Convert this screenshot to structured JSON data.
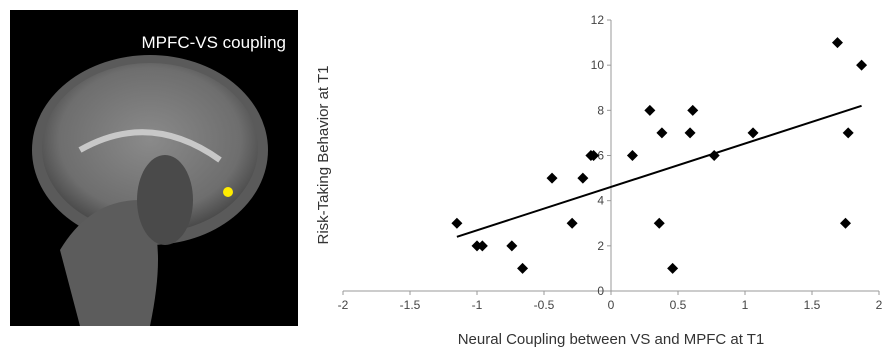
{
  "image": {
    "label": "MPFC-VS coupling"
  },
  "chart_data": {
    "type": "scatter",
    "x_label": "Neural Coupling between VS and MPFC at T1",
    "y_label": "Risk-Taking Behavior at T1",
    "x": [
      -1.15,
      -1.0,
      -0.96,
      -0.74,
      -0.66,
      -0.44,
      -0.29,
      -0.21,
      -0.15,
      -0.13,
      0.16,
      0.29,
      0.36,
      0.38,
      0.46,
      0.59,
      0.61,
      0.77,
      1.06,
      1.69,
      1.75,
      1.77,
      1.87
    ],
    "values": [
      3,
      2,
      2,
      2,
      1,
      5,
      3,
      5,
      6,
      6,
      6,
      8,
      3,
      7,
      1,
      7,
      8,
      6,
      7,
      11,
      3,
      7,
      10
    ],
    "color": "#000000",
    "trendline": {
      "x": [
        -1.15,
        1.87
      ],
      "y": [
        2.4,
        8.2
      ],
      "color": "#000000"
    },
    "xlim": [
      -2,
      2
    ],
    "ylim": [
      0,
      12
    ],
    "xticks": [
      -2,
      -1.5,
      -1,
      -0.5,
      0,
      0.5,
      1,
      1.5,
      2
    ],
    "yticks": [
      0,
      2,
      4,
      6,
      8,
      10,
      12
    ],
    "grid": false
  }
}
